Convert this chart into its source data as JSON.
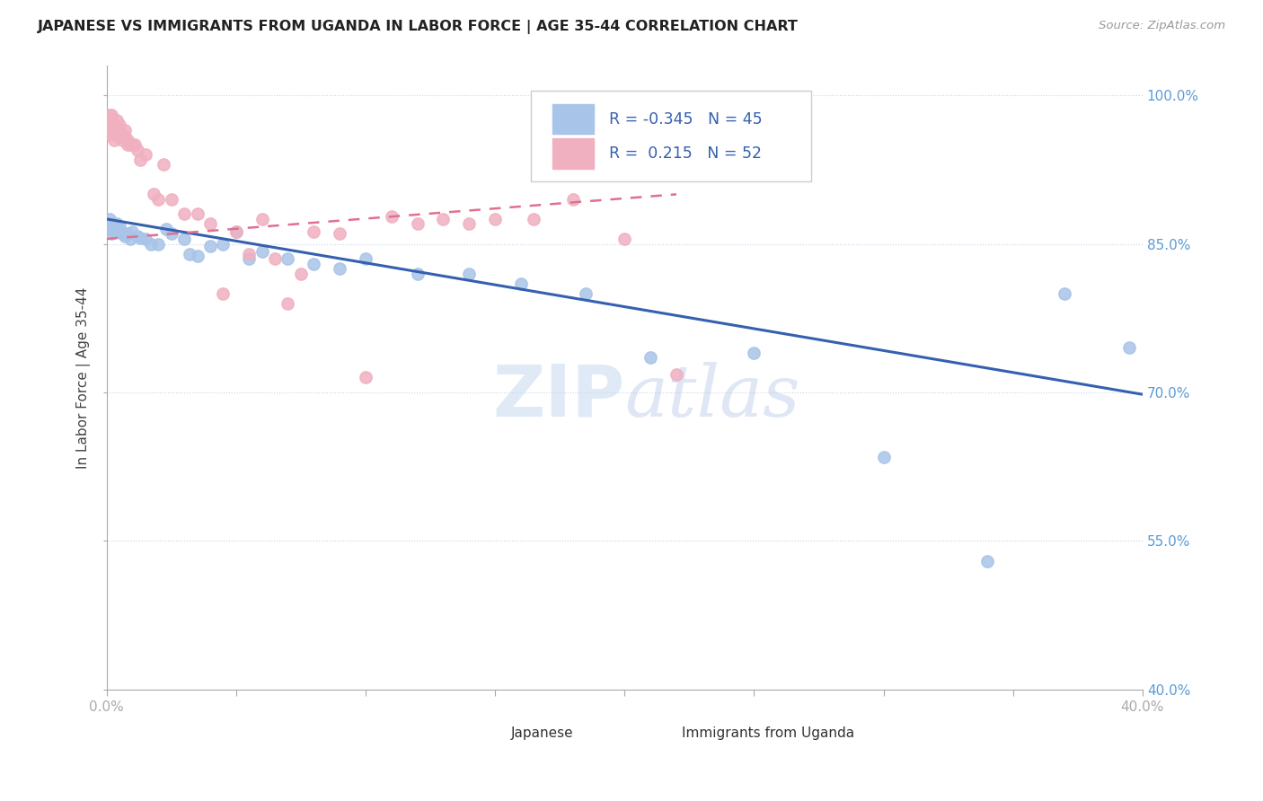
{
  "title": "JAPANESE VS IMMIGRANTS FROM UGANDA IN LABOR FORCE | AGE 35-44 CORRELATION CHART",
  "source": "Source: ZipAtlas.com",
  "ylabel": "In Labor Force | Age 35-44",
  "xlim": [
    0.0,
    0.4
  ],
  "ylim": [
    0.4,
    1.03
  ],
  "xtick_positions": [
    0.0,
    0.05,
    0.1,
    0.15,
    0.2,
    0.25,
    0.3,
    0.35,
    0.4
  ],
  "xticklabels": [
    "0.0%",
    "",
    "",
    "",
    "",
    "",
    "",
    "",
    "40.0%"
  ],
  "ytick_positions": [
    0.4,
    0.55,
    0.7,
    0.85,
    1.0
  ],
  "yticklabels": [
    "40.0%",
    "55.0%",
    "70.0%",
    "85.0%",
    "100.0%"
  ],
  "legend_r_japanese": "-0.345",
  "legend_n_japanese": "45",
  "legend_r_uganda": " 0.215",
  "legend_n_uganda": "52",
  "japanese_color": "#a8c4e8",
  "uganda_color": "#f0b0c0",
  "japanese_line_color": "#3560b0",
  "uganda_line_color": "#e07090",
  "watermark_color": "#c8d8f0",
  "japanese_x": [
    0.001,
    0.001,
    0.002,
    0.002,
    0.002,
    0.003,
    0.003,
    0.004,
    0.004,
    0.005,
    0.005,
    0.006,
    0.007,
    0.008,
    0.009,
    0.01,
    0.012,
    0.013,
    0.015,
    0.017,
    0.02,
    0.023,
    0.025,
    0.03,
    0.032,
    0.035,
    0.04,
    0.045,
    0.05,
    0.055,
    0.06,
    0.07,
    0.08,
    0.09,
    0.1,
    0.12,
    0.14,
    0.16,
    0.185,
    0.21,
    0.25,
    0.3,
    0.34,
    0.37,
    0.395
  ],
  "japanese_y": [
    0.87,
    0.875,
    0.87,
    0.865,
    0.86,
    0.868,
    0.862,
    0.87,
    0.865,
    0.868,
    0.862,
    0.86,
    0.858,
    0.86,
    0.855,
    0.862,
    0.858,
    0.856,
    0.855,
    0.85,
    0.85,
    0.865,
    0.86,
    0.855,
    0.84,
    0.838,
    0.848,
    0.85,
    0.862,
    0.835,
    0.842,
    0.835,
    0.83,
    0.825,
    0.835,
    0.82,
    0.82,
    0.81,
    0.8,
    0.735,
    0.74,
    0.635,
    0.53,
    0.8,
    0.745
  ],
  "uganda_x": [
    0.001,
    0.001,
    0.001,
    0.002,
    0.002,
    0.002,
    0.003,
    0.003,
    0.003,
    0.004,
    0.004,
    0.004,
    0.005,
    0.005,
    0.006,
    0.006,
    0.007,
    0.007,
    0.008,
    0.008,
    0.009,
    0.01,
    0.011,
    0.012,
    0.013,
    0.015,
    0.018,
    0.02,
    0.022,
    0.025,
    0.03,
    0.035,
    0.04,
    0.045,
    0.05,
    0.055,
    0.06,
    0.065,
    0.07,
    0.075,
    0.08,
    0.09,
    0.1,
    0.11,
    0.12,
    0.13,
    0.14,
    0.15,
    0.165,
    0.18,
    0.2,
    0.22
  ],
  "uganda_y": [
    0.98,
    0.97,
    0.96,
    0.98,
    0.975,
    0.965,
    0.97,
    0.96,
    0.955,
    0.975,
    0.965,
    0.96,
    0.97,
    0.965,
    0.96,
    0.955,
    0.965,
    0.958,
    0.955,
    0.95,
    0.95,
    0.95,
    0.95,
    0.945,
    0.935,
    0.94,
    0.9,
    0.895,
    0.93,
    0.895,
    0.88,
    0.88,
    0.87,
    0.8,
    0.862,
    0.84,
    0.875,
    0.835,
    0.79,
    0.82,
    0.862,
    0.86,
    0.715,
    0.878,
    0.87,
    0.875,
    0.87,
    0.875,
    0.875,
    0.895,
    0.855,
    0.718
  ],
  "blue_line_x": [
    0.0,
    0.4
  ],
  "blue_line_y": [
    0.875,
    0.698
  ],
  "pink_line_x": [
    0.0,
    0.22
  ],
  "pink_line_y": [
    0.855,
    0.9
  ]
}
